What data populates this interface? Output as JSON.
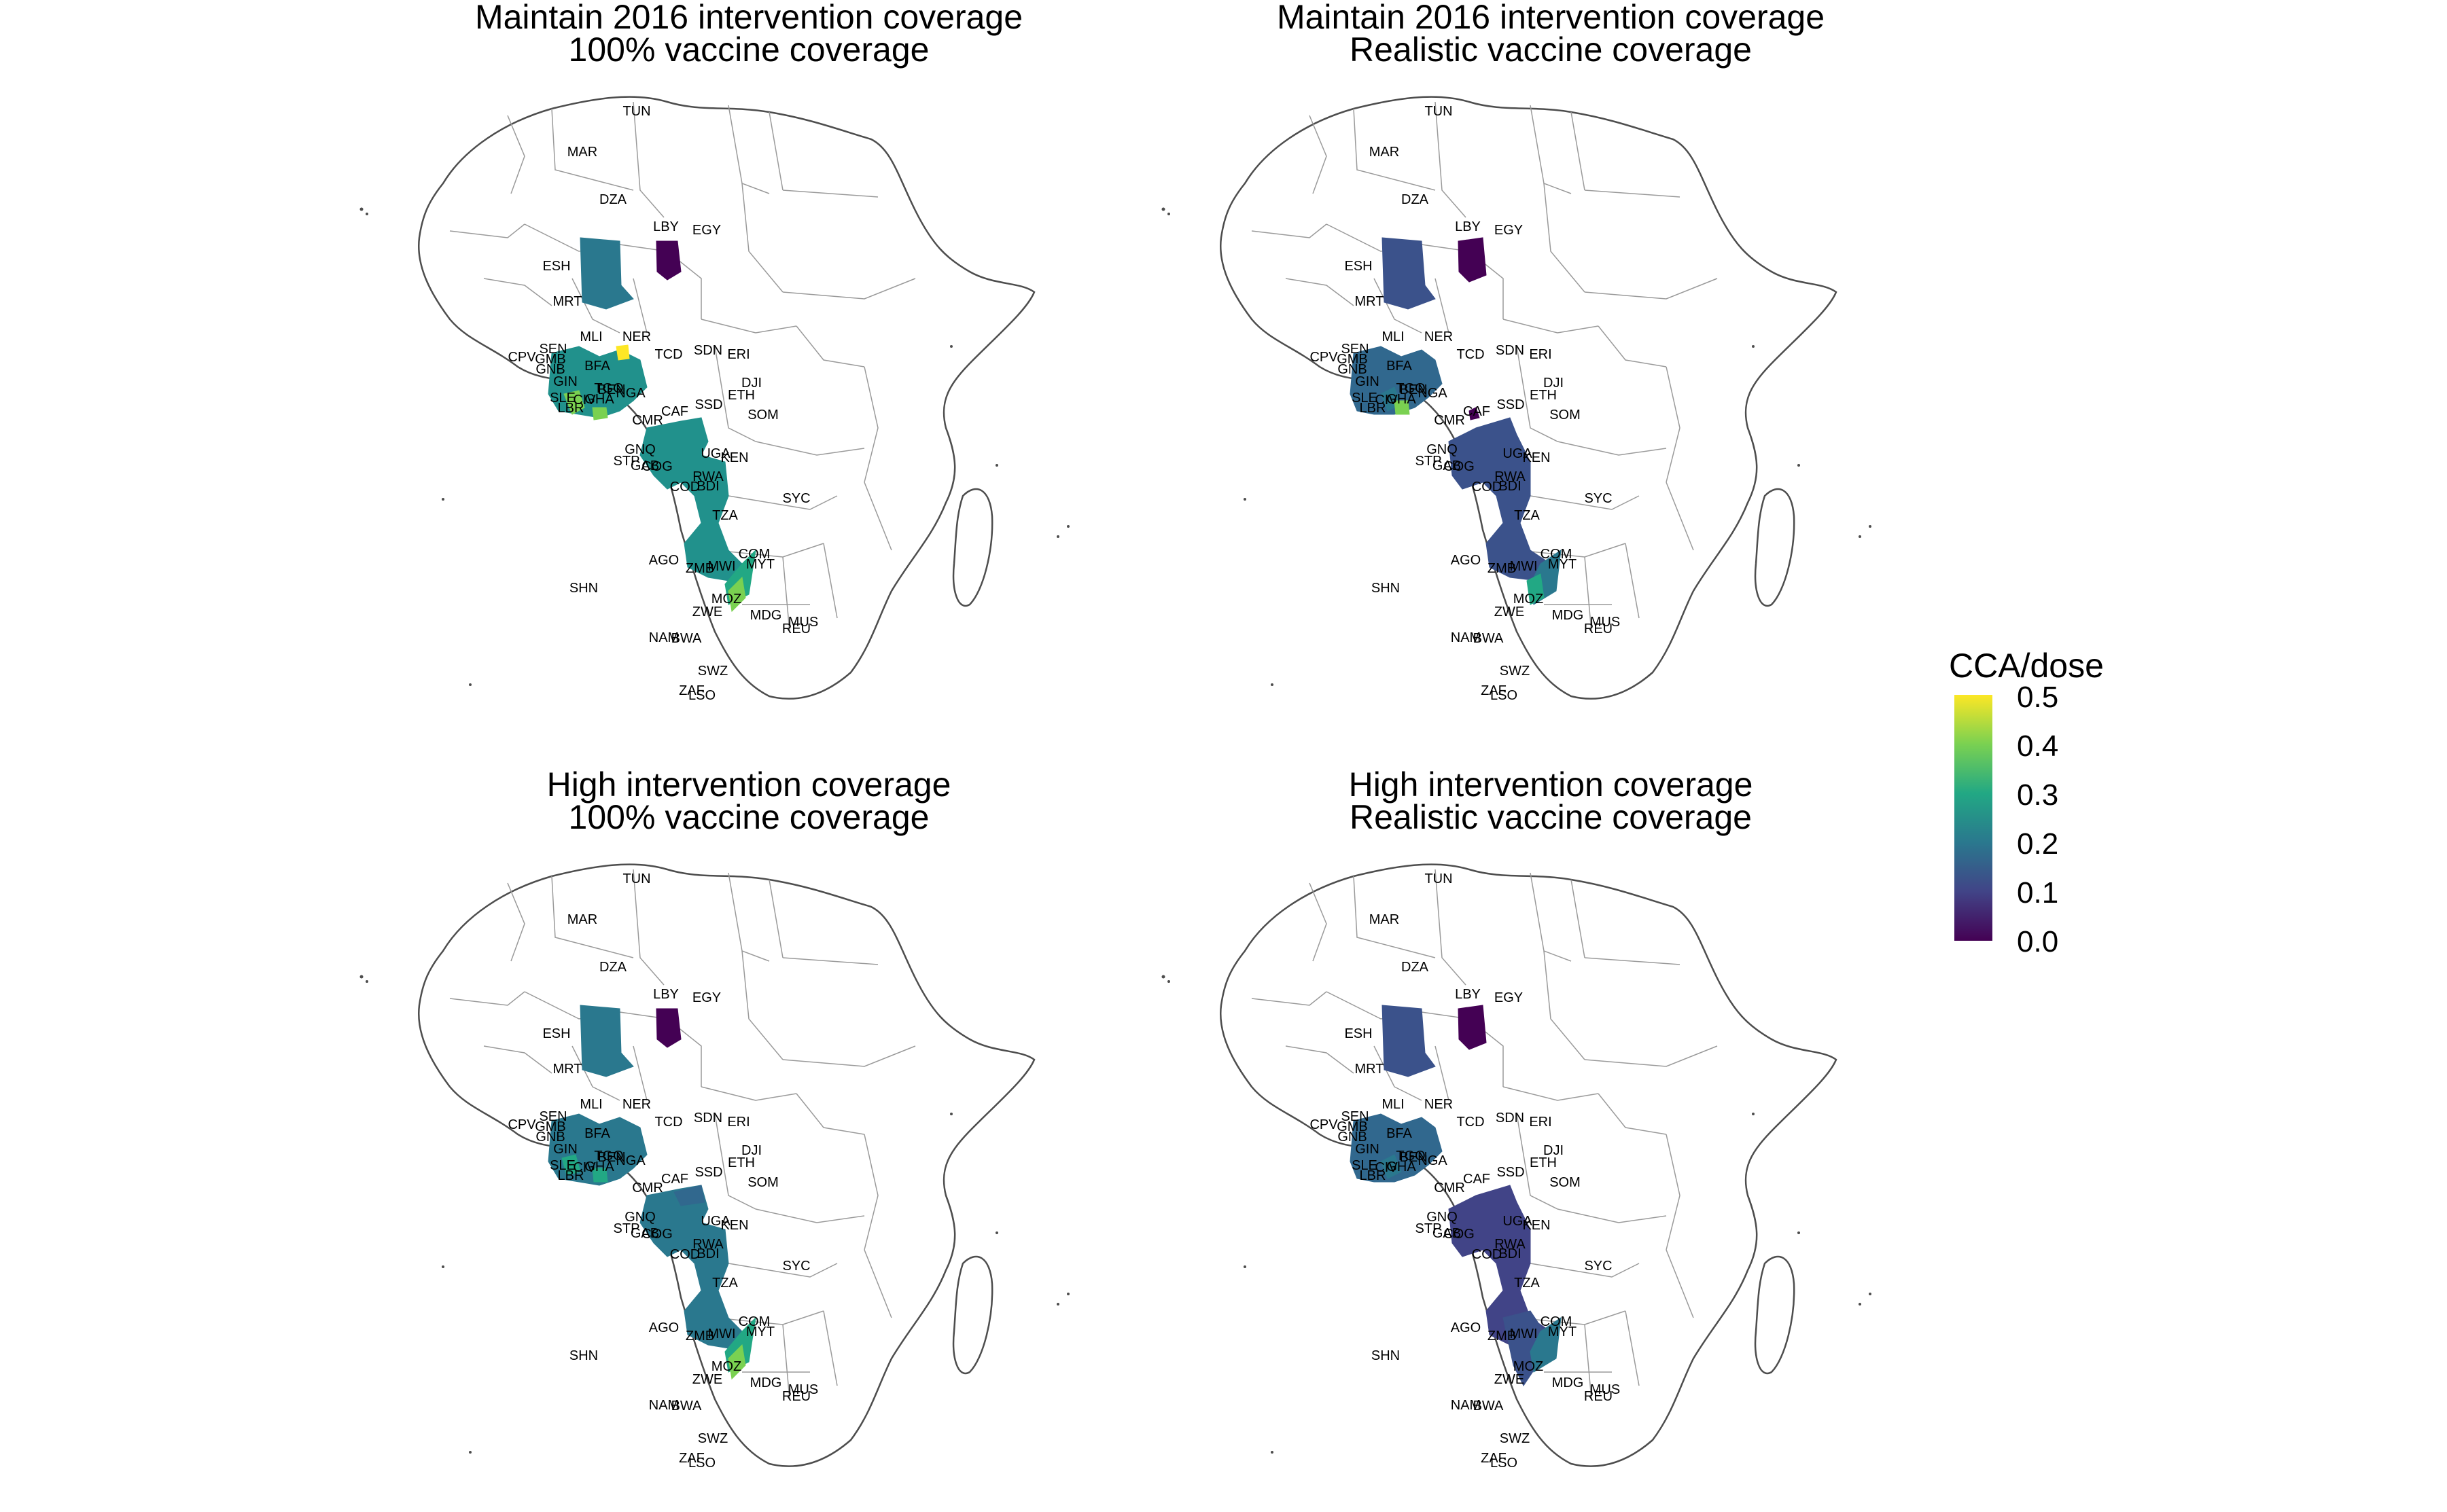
{
  "figure": {
    "legend_title": "CCA/dose",
    "legend_ticks": [
      "0.5",
      "0.4",
      "0.3",
      "0.2",
      "0.1",
      "0.0"
    ],
    "color_scale": [
      "#440154",
      "#414487",
      "#2a788e",
      "#22a884",
      "#7ad151",
      "#fde725"
    ],
    "scale_range": [
      0.0,
      0.5
    ]
  },
  "panels": [
    {
      "title_line1": "Maintain 2016 intervention coverage",
      "title_line2": "100% vaccine coverage"
    },
    {
      "title_line1": "Maintain 2016 intervention coverage",
      "title_line2": "Realistic vaccine coverage"
    },
    {
      "title_line1": "High intervention coverage",
      "title_line2": "100% vaccine coverage"
    },
    {
      "title_line1": "High intervention coverage",
      "title_line2": "Realistic vaccine coverage"
    }
  ],
  "country_labels": [
    "TUN",
    "MAR",
    "DZA",
    "LBY",
    "EGY",
    "ESH",
    "MRT",
    "MLI",
    "NER",
    "TCD",
    "SDN",
    "ERI",
    "DJI",
    "CPV",
    "SEN",
    "GMB",
    "GNB",
    "GIN",
    "SLE",
    "LBR",
    "CIV",
    "GHA",
    "TGO",
    "BEN",
    "BFA",
    "NGA",
    "CMR",
    "CAF",
    "SSD",
    "ETH",
    "SOM",
    "STP",
    "GNQ",
    "GAB",
    "COG",
    "COD",
    "UGA",
    "KEN",
    "RWA",
    "BDI",
    "TZA",
    "SYC",
    "SHN",
    "AGO",
    "ZMB",
    "MWI",
    "COM",
    "MYT",
    "MOZ",
    "ZWE",
    "MDG",
    "MUS",
    "REU",
    "NAM",
    "BWA",
    "SWZ",
    "ZAF",
    "LSO"
  ],
  "region_colors": {
    "chad": "#440154",
    "darkblue": "#414487",
    "blue": "#3b528b",
    "tealblue": "#31688e",
    "teal": "#2a788e",
    "tealgreen": "#21918c",
    "green": "#22a884",
    "lightgreen": "#7ad151",
    "yellowgreen": "#b5de2b",
    "yellow": "#fde725"
  }
}
